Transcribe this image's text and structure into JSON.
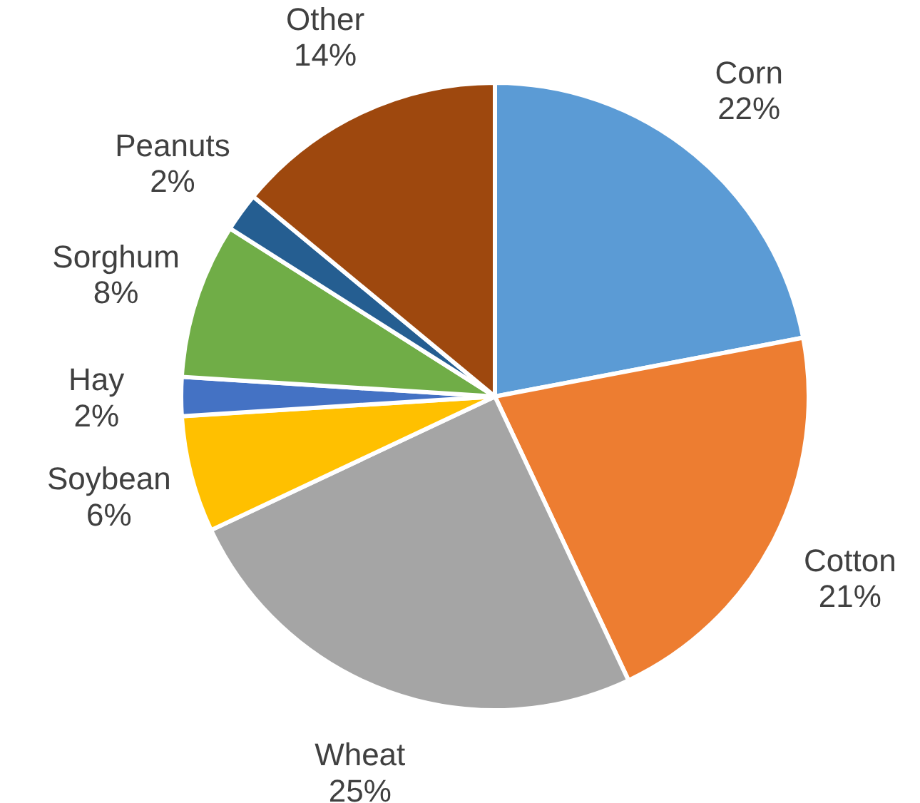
{
  "chart_data": {
    "type": "pie",
    "categories": [
      "Corn",
      "Cotton",
      "Wheat",
      "Soybean",
      "Hay",
      "Sorghum",
      "Peanuts",
      "Other"
    ],
    "values": [
      22,
      21,
      25,
      6,
      2,
      8,
      2,
      14
    ],
    "colors": [
      "#5b9bd5",
      "#ed7d31",
      "#a5a5a5",
      "#ffc000",
      "#4472c4",
      "#70ad47",
      "#255e91",
      "#9e480e"
    ],
    "value_labels": [
      "22%",
      "21%",
      "25%",
      "6%",
      "2%",
      "8%",
      "2%",
      "14%"
    ]
  }
}
